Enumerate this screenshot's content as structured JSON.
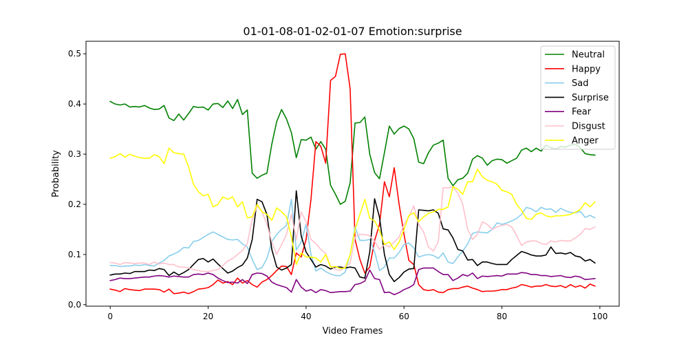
{
  "chart_data": {
    "type": "line",
    "title": "01-01-08-01-02-01-07 Emotion:surprise",
    "xlabel": "Video Frames",
    "ylabel": "Probability",
    "xlim": [
      -4.95,
      103.95
    ],
    "ylim": [
      -0.003,
      0.525
    ],
    "xticks": [
      0,
      20,
      40,
      60,
      80,
      100
    ],
    "xtick_labels": [
      "0",
      "20",
      "40",
      "60",
      "80",
      "100"
    ],
    "yticks": [
      0.0,
      0.1,
      0.2,
      0.3,
      0.4,
      0.5
    ],
    "ytick_labels": [
      "0.0",
      "0.1",
      "0.2",
      "0.3",
      "0.4",
      "0.5"
    ],
    "grid": false,
    "legend_position": "top-right",
    "x": [
      0,
      1,
      2,
      3,
      4,
      5,
      6,
      7,
      8,
      9,
      10,
      11,
      12,
      13,
      14,
      15,
      16,
      17,
      18,
      19,
      20,
      21,
      22,
      23,
      24,
      25,
      26,
      27,
      28,
      29,
      30,
      31,
      32,
      33,
      34,
      35,
      36,
      37,
      38,
      39,
      40,
      41,
      42,
      43,
      44,
      45,
      46,
      47,
      48,
      49,
      50,
      51,
      52,
      53,
      54,
      55,
      56,
      57,
      58,
      59,
      60,
      61,
      62,
      63,
      64,
      65,
      66,
      67,
      68,
      69,
      70,
      71,
      72,
      73,
      74,
      75,
      76,
      77,
      78,
      79,
      80,
      81,
      82,
      83,
      84,
      85,
      86,
      87,
      88,
      89,
      90,
      91,
      92,
      93,
      94,
      95,
      96,
      97,
      98,
      99
    ],
    "series": [
      {
        "name": "Neutral",
        "color": "#008000",
        "values": [
          0.405,
          0.4,
          0.398,
          0.4,
          0.394,
          0.395,
          0.394,
          0.397,
          0.392,
          0.389,
          0.39,
          0.397,
          0.372,
          0.367,
          0.38,
          0.368,
          0.381,
          0.395,
          0.393,
          0.394,
          0.388,
          0.4,
          0.401,
          0.393,
          0.406,
          0.391,
          0.409,
          0.379,
          0.388,
          0.262,
          0.252,
          0.258,
          0.262,
          0.32,
          0.365,
          0.389,
          0.37,
          0.343,
          0.293,
          0.329,
          0.328,
          0.334,
          0.31,
          0.325,
          0.31,
          0.238,
          0.22,
          0.2,
          0.206,
          0.243,
          0.362,
          0.363,
          0.374,
          0.3,
          0.263,
          0.251,
          0.303,
          0.356,
          0.34,
          0.351,
          0.356,
          0.35,
          0.331,
          0.284,
          0.281,
          0.303,
          0.318,
          0.322,
          0.328,
          0.252,
          0.237,
          0.249,
          0.252,
          0.262,
          0.29,
          0.297,
          0.292,
          0.278,
          0.287,
          0.29,
          0.289,
          0.282,
          0.287,
          0.292,
          0.308,
          0.312,
          0.305,
          0.312,
          0.306,
          0.318,
          0.313,
          0.31,
          0.315,
          0.314,
          0.318,
          0.32,
          0.313,
          0.301,
          0.299,
          0.298
        ]
      },
      {
        "name": "Happy",
        "color": "#ff0000",
        "values": [
          0.031,
          0.029,
          0.026,
          0.032,
          0.03,
          0.029,
          0.028,
          0.031,
          0.031,
          0.031,
          0.03,
          0.025,
          0.031,
          0.022,
          0.023,
          0.025,
          0.022,
          0.026,
          0.031,
          0.032,
          0.034,
          0.04,
          0.049,
          0.043,
          0.046,
          0.04,
          0.053,
          0.043,
          0.048,
          0.04,
          0.035,
          0.045,
          0.05,
          0.058,
          0.068,
          0.077,
          0.076,
          0.06,
          0.103,
          0.095,
          0.13,
          0.21,
          0.325,
          0.316,
          0.282,
          0.447,
          0.455,
          0.499,
          0.5,
          0.43,
          0.13,
          0.09,
          0.063,
          0.075,
          0.128,
          0.16,
          0.245,
          0.215,
          0.273,
          0.2,
          0.14,
          0.088,
          0.08,
          0.04,
          0.03,
          0.028,
          0.03,
          0.025,
          0.024,
          0.03,
          0.032,
          0.032,
          0.035,
          0.037,
          0.033,
          0.03,
          0.026,
          0.027,
          0.027,
          0.028,
          0.03,
          0.03,
          0.033,
          0.035,
          0.04,
          0.038,
          0.035,
          0.037,
          0.037,
          0.04,
          0.037,
          0.036,
          0.038,
          0.034,
          0.04,
          0.035,
          0.038,
          0.033,
          0.041,
          0.037
        ]
      },
      {
        "name": "Sad",
        "color": "#87ceeb",
        "values": [
          0.078,
          0.078,
          0.076,
          0.077,
          0.077,
          0.079,
          0.078,
          0.08,
          0.078,
          0.077,
          0.083,
          0.088,
          0.097,
          0.101,
          0.106,
          0.114,
          0.113,
          0.126,
          0.128,
          0.134,
          0.14,
          0.145,
          0.14,
          0.135,
          0.13,
          0.129,
          0.13,
          0.121,
          0.115,
          0.09,
          0.07,
          0.074,
          0.092,
          0.126,
          0.14,
          0.15,
          0.158,
          0.21,
          0.109,
          0.125,
          0.16,
          0.1,
          0.067,
          0.073,
          0.066,
          0.061,
          0.058,
          0.058,
          0.065,
          0.1,
          0.155,
          0.128,
          0.128,
          0.13,
          0.105,
          0.068,
          0.075,
          0.093,
          0.093,
          0.104,
          0.12,
          0.123,
          0.113,
          0.095,
          0.098,
          0.1,
          0.098,
          0.092,
          0.103,
          0.085,
          0.082,
          0.095,
          0.107,
          0.121,
          0.142,
          0.145,
          0.144,
          0.143,
          0.15,
          0.163,
          0.16,
          0.163,
          0.167,
          0.172,
          0.18,
          0.194,
          0.191,
          0.185,
          0.194,
          0.19,
          0.191,
          0.184,
          0.192,
          0.187,
          0.184,
          0.183,
          0.186,
          0.174,
          0.178,
          0.173
        ]
      },
      {
        "name": "Surprise",
        "color": "#000000",
        "values": [
          0.059,
          0.061,
          0.061,
          0.063,
          0.062,
          0.066,
          0.066,
          0.066,
          0.069,
          0.068,
          0.072,
          0.07,
          0.058,
          0.065,
          0.059,
          0.064,
          0.07,
          0.08,
          0.09,
          0.092,
          0.085,
          0.091,
          0.081,
          0.072,
          0.063,
          0.067,
          0.074,
          0.079,
          0.093,
          0.13,
          0.21,
          0.205,
          0.18,
          0.11,
          0.075,
          0.069,
          0.073,
          0.08,
          0.227,
          0.137,
          0.105,
          0.09,
          0.075,
          0.08,
          0.077,
          0.071,
          0.075,
          0.075,
          0.073,
          0.075,
          0.073,
          0.055,
          0.053,
          0.105,
          0.211,
          0.174,
          0.1,
          0.06,
          0.046,
          0.054,
          0.065,
          0.071,
          0.072,
          0.189,
          0.188,
          0.187,
          0.189,
          0.182,
          0.151,
          0.149,
          0.133,
          0.11,
          0.107,
          0.089,
          0.09,
          0.078,
          0.085,
          0.085,
          0.082,
          0.08,
          0.08,
          0.08,
          0.09,
          0.098,
          0.106,
          0.103,
          0.099,
          0.097,
          0.097,
          0.099,
          0.115,
          0.102,
          0.103,
          0.101,
          0.104,
          0.097,
          0.095,
          0.087,
          0.09,
          0.083
        ]
      },
      {
        "name": "Fear",
        "color": "#800080",
        "values": [
          0.048,
          0.05,
          0.053,
          0.052,
          0.052,
          0.053,
          0.054,
          0.055,
          0.055,
          0.057,
          0.058,
          0.057,
          0.055,
          0.057,
          0.056,
          0.055,
          0.055,
          0.06,
          0.061,
          0.06,
          0.063,
          0.06,
          0.053,
          0.048,
          0.044,
          0.045,
          0.043,
          0.05,
          0.042,
          0.06,
          0.063,
          0.062,
          0.057,
          0.045,
          0.04,
          0.037,
          0.034,
          0.025,
          0.05,
          0.035,
          0.027,
          0.03,
          0.024,
          0.03,
          0.028,
          0.024,
          0.025,
          0.026,
          0.026,
          0.027,
          0.04,
          0.042,
          0.047,
          0.069,
          0.052,
          0.05,
          0.024,
          0.025,
          0.02,
          0.024,
          0.03,
          0.034,
          0.04,
          0.07,
          0.073,
          0.073,
          0.073,
          0.066,
          0.06,
          0.06,
          0.048,
          0.053,
          0.06,
          0.057,
          0.063,
          0.052,
          0.057,
          0.056,
          0.057,
          0.058,
          0.057,
          0.061,
          0.061,
          0.061,
          0.064,
          0.063,
          0.06,
          0.06,
          0.058,
          0.058,
          0.056,
          0.057,
          0.058,
          0.055,
          0.054,
          0.057,
          0.055,
          0.05,
          0.051,
          0.052
        ]
      },
      {
        "name": "Disgust",
        "color": "#ffc0cb",
        "values": [
          0.084,
          0.083,
          0.08,
          0.084,
          0.083,
          0.082,
          0.083,
          0.083,
          0.08,
          0.085,
          0.081,
          0.083,
          0.08,
          0.08,
          0.075,
          0.075,
          0.073,
          0.07,
          0.068,
          0.066,
          0.066,
          0.068,
          0.07,
          0.078,
          0.087,
          0.092,
          0.1,
          0.108,
          0.122,
          0.17,
          0.197,
          0.185,
          0.16,
          0.125,
          0.1,
          0.12,
          0.14,
          0.18,
          0.13,
          0.185,
          0.165,
          0.13,
          0.122,
          0.11,
          0.102,
          0.077,
          0.07,
          0.068,
          0.076,
          0.082,
          0.135,
          0.14,
          0.14,
          0.137,
          0.126,
          0.11,
          0.12,
          0.115,
          0.125,
          0.135,
          0.16,
          0.175,
          0.197,
          0.16,
          0.145,
          0.115,
          0.107,
          0.125,
          0.233,
          0.233,
          0.235,
          0.222,
          0.2,
          0.15,
          0.13,
          0.14,
          0.165,
          0.16,
          0.15,
          0.155,
          0.158,
          0.16,
          0.155,
          0.138,
          0.118,
          0.125,
          0.127,
          0.127,
          0.122,
          0.12,
          0.127,
          0.125,
          0.128,
          0.127,
          0.127,
          0.133,
          0.14,
          0.152,
          0.15,
          0.155
        ]
      },
      {
        "name": "Anger",
        "color": "#ffff00",
        "values": [
          0.292,
          0.295,
          0.301,
          0.294,
          0.3,
          0.296,
          0.293,
          0.292,
          0.292,
          0.299,
          0.295,
          0.281,
          0.312,
          0.303,
          0.301,
          0.3,
          0.275,
          0.24,
          0.225,
          0.217,
          0.22,
          0.195,
          0.2,
          0.215,
          0.21,
          0.215,
          0.195,
          0.205,
          0.173,
          0.175,
          0.2,
          0.185,
          0.18,
          0.168,
          0.193,
          0.185,
          0.175,
          0.135,
          0.08,
          0.103,
          0.095,
          0.095,
          0.093,
          0.085,
          0.1,
          0.075,
          0.076,
          0.072,
          0.073,
          0.1,
          0.15,
          0.18,
          0.21,
          0.172,
          0.167,
          0.148,
          0.12,
          0.125,
          0.11,
          0.125,
          0.15,
          0.178,
          0.183,
          0.165,
          0.175,
          0.182,
          0.185,
          0.19,
          0.19,
          0.195,
          0.235,
          0.23,
          0.22,
          0.245,
          0.245,
          0.27,
          0.255,
          0.248,
          0.245,
          0.24,
          0.228,
          0.225,
          0.22,
          0.2,
          0.188,
          0.172,
          0.17,
          0.18,
          0.183,
          0.177,
          0.175,
          0.177,
          0.177,
          0.178,
          0.18,
          0.184,
          0.19,
          0.203,
          0.195,
          0.205
        ]
      }
    ]
  }
}
